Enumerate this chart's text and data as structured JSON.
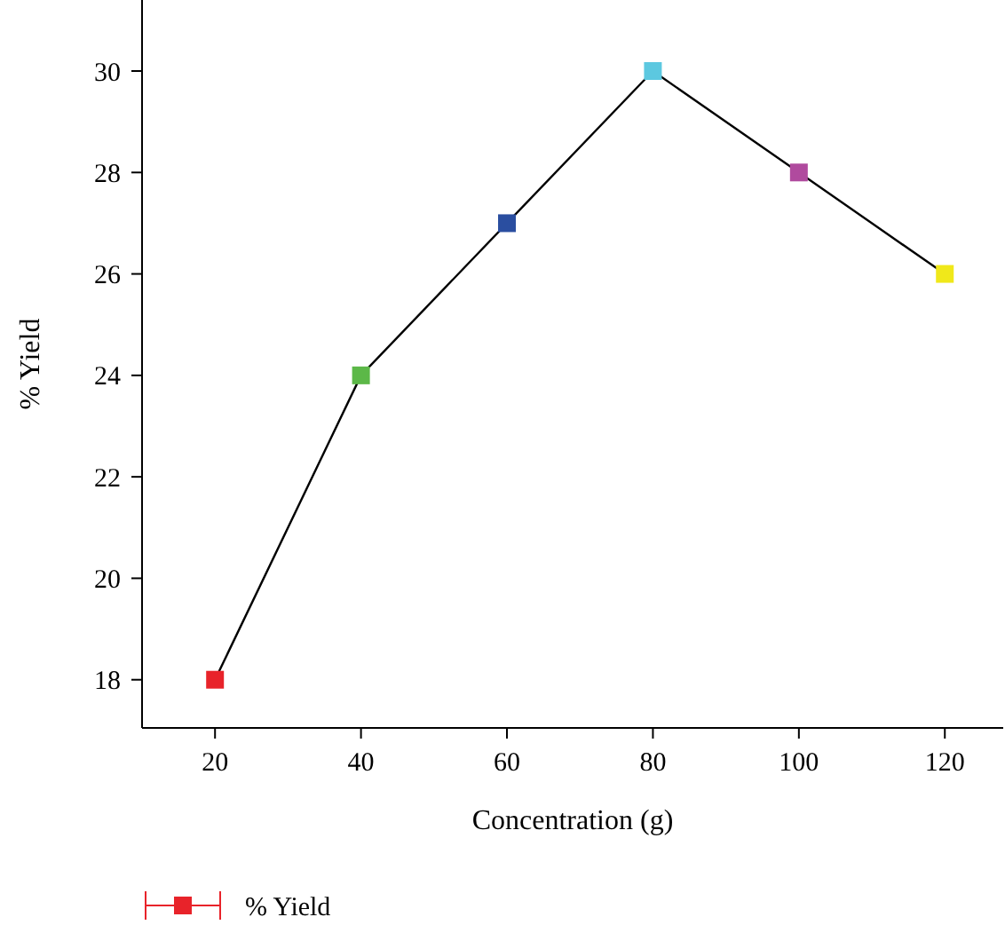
{
  "chart_data": {
    "type": "line",
    "xlabel": "Concentration (g)",
    "ylabel": "% Yield",
    "x": [
      20,
      40,
      60,
      80,
      100,
      120
    ],
    "series": [
      {
        "name": "% Yield",
        "color": "#000000",
        "colors": [
          "#e8232a",
          "#5cb848",
          "#2a4ea0",
          "#5cc8e0",
          "#b04a9e",
          "#f0e81a"
        ],
        "values": [
          18,
          24,
          27,
          30,
          28,
          26
        ]
      }
    ],
    "xlim": [
      10,
      128
    ],
    "xticks": [
      20,
      40,
      60,
      80,
      100,
      120
    ],
    "ylim": [
      17.05,
      31.4
    ],
    "yticks": [
      18,
      20,
      22,
      24,
      26,
      28,
      30
    ],
    "marker": "square",
    "line_style": "solid",
    "grid": false,
    "legend": "bottom left"
  }
}
